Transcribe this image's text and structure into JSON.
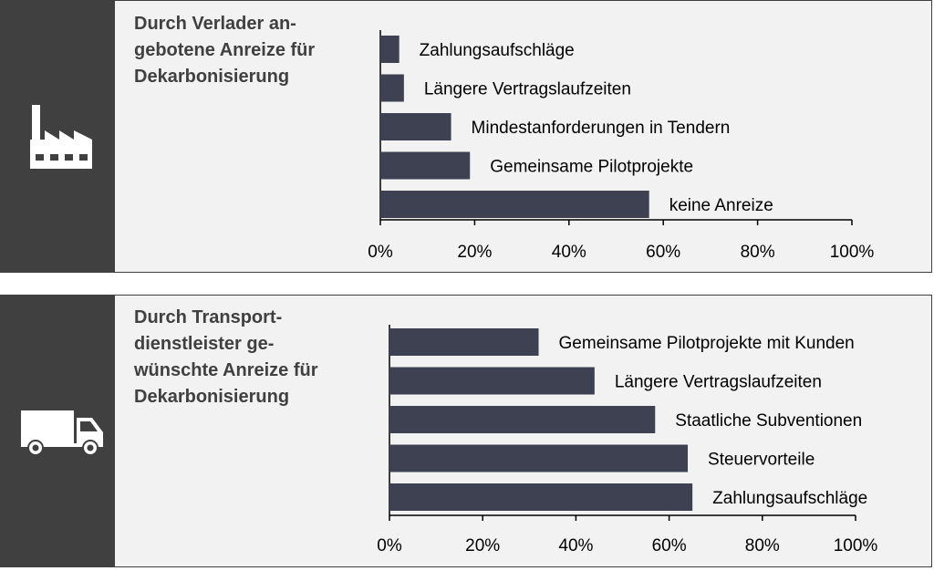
{
  "chart_data": [
    {
      "type": "bar",
      "orientation": "horizontal",
      "title_lines": [
        "Durch Verlader an-",
        "gebotene Anreize für",
        "Dekarbonisierung"
      ],
      "categories": [
        "Zahlungsaufschläge",
        "Längere Vertragslaufzeiten",
        "Mindestanforderungen in Tendern",
        "Gemeinsame Pilotprojekte",
        "keine Anreize"
      ],
      "values": [
        4,
        5,
        15,
        19,
        57
      ],
      "xlim": [
        0,
        100
      ],
      "xticks": [
        "0%",
        "20%",
        "40%",
        "60%",
        "80%",
        "100%"
      ],
      "bar_color": "#3d4152",
      "icon": "factory-icon"
    },
    {
      "type": "bar",
      "orientation": "horizontal",
      "title_lines": [
        "Durch Transport-",
        "dienstleister ge-",
        "wünschte Anreize für",
        "Dekarbonisierung"
      ],
      "categories": [
        "Gemeinsame Pilotprojekte mit Kunden",
        "Längere Vertragslaufzeiten",
        "Staatliche Subventionen",
        "Steuervorteile",
        "Zahlungsaufschläge"
      ],
      "values": [
        32,
        44,
        57,
        64,
        65
      ],
      "xlim": [
        0,
        100
      ],
      "xticks": [
        "0%",
        "20%",
        "40%",
        "60%",
        "80%",
        "100%"
      ],
      "bar_color": "#3d4152",
      "icon": "truck-icon"
    }
  ]
}
